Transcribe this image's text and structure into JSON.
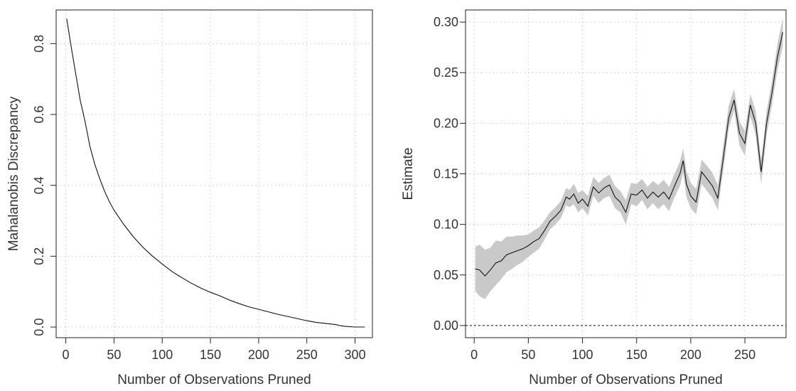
{
  "chart_data": [
    {
      "type": "line",
      "title": "",
      "xlabel": "Number of Observations Pruned",
      "ylabel": "Mahalanobis Discrepancy",
      "xlim": [
        -10,
        318
      ],
      "ylim": [
        -0.03,
        0.895
      ],
      "xticks": [
        0,
        50,
        100,
        150,
        200,
        250,
        300
      ],
      "yticks": [
        0.0,
        0.2,
        0.4,
        0.6,
        0.8
      ],
      "xtick_labels": [
        "0",
        "50",
        "100",
        "150",
        "200",
        "250",
        "300"
      ],
      "ytick_labels": [
        "0.0",
        "0.2",
        "0.4",
        "0.6",
        "0.8"
      ],
      "grid": true,
      "series": [
        {
          "x": [
            1,
            5,
            10,
            15,
            20,
            25,
            30,
            35,
            40,
            45,
            50,
            60,
            70,
            80,
            90,
            100,
            110,
            120,
            130,
            140,
            150,
            160,
            170,
            180,
            190,
            200,
            210,
            220,
            230,
            240,
            250,
            260,
            270,
            280,
            285,
            290,
            300,
            310
          ],
          "y": [
            0.87,
            0.8,
            0.72,
            0.64,
            0.58,
            0.51,
            0.46,
            0.42,
            0.385,
            0.355,
            0.33,
            0.29,
            0.255,
            0.225,
            0.2,
            0.178,
            0.157,
            0.14,
            0.124,
            0.11,
            0.098,
            0.088,
            0.076,
            0.066,
            0.057,
            0.05,
            0.043,
            0.036,
            0.03,
            0.024,
            0.018,
            0.013,
            0.01,
            0.007,
            0.004,
            0.002,
            0.0,
            0.0
          ]
        }
      ]
    },
    {
      "type": "line",
      "title": "",
      "xlabel": "Number of Observations Pruned",
      "ylabel": "Estimate",
      "xlim": [
        -8,
        288
      ],
      "ylim": [
        -0.012,
        0.312
      ],
      "xticks": [
        0,
        50,
        100,
        150,
        200,
        250
      ],
      "yticks": [
        0.0,
        0.05,
        0.1,
        0.15,
        0.2,
        0.25,
        0.3
      ],
      "xtick_labels": [
        "0",
        "50",
        "100",
        "150",
        "200",
        "250"
      ],
      "ytick_labels": [
        "0.00",
        "0.05",
        "0.10",
        "0.15",
        "0.20",
        "0.25",
        "0.30"
      ],
      "grid": true,
      "reference_line": 0.0,
      "series": [
        {
          "band": "confidence interval",
          "x": [
            1,
            5,
            10,
            15,
            20,
            25,
            30,
            35,
            40,
            45,
            50,
            55,
            60,
            65,
            70,
            75,
            80,
            85,
            88,
            92,
            96,
            100,
            105,
            110,
            115,
            120,
            125,
            130,
            135,
            140,
            145,
            150,
            155,
            160,
            165,
            170,
            175,
            180,
            185,
            190,
            193,
            196,
            200,
            205,
            210,
            215,
            220,
            225,
            230,
            235,
            240,
            245,
            250,
            255,
            260,
            265,
            270,
            275,
            280,
            285
          ],
          "y": [
            0.056,
            0.055,
            0.049,
            0.055,
            0.062,
            0.064,
            0.07,
            0.072,
            0.074,
            0.076,
            0.079,
            0.083,
            0.086,
            0.094,
            0.103,
            0.108,
            0.114,
            0.127,
            0.125,
            0.13,
            0.121,
            0.125,
            0.118,
            0.137,
            0.131,
            0.136,
            0.139,
            0.127,
            0.122,
            0.112,
            0.13,
            0.129,
            0.134,
            0.126,
            0.132,
            0.127,
            0.132,
            0.125,
            0.138,
            0.15,
            0.163,
            0.14,
            0.128,
            0.122,
            0.152,
            0.145,
            0.138,
            0.126,
            0.165,
            0.205,
            0.223,
            0.19,
            0.18,
            0.218,
            0.2,
            0.152,
            0.2,
            0.23,
            0.265,
            0.29
          ],
          "lower": [
            0.034,
            0.029,
            0.026,
            0.034,
            0.04,
            0.046,
            0.053,
            0.056,
            0.06,
            0.063,
            0.068,
            0.072,
            0.076,
            0.085,
            0.095,
            0.1,
            0.106,
            0.119,
            0.117,
            0.12,
            0.112,
            0.116,
            0.109,
            0.128,
            0.121,
            0.126,
            0.128,
            0.116,
            0.112,
            0.1,
            0.12,
            0.118,
            0.124,
            0.115,
            0.121,
            0.115,
            0.12,
            0.113,
            0.127,
            0.138,
            0.151,
            0.127,
            0.116,
            0.11,
            0.14,
            0.133,
            0.126,
            0.114,
            0.153,
            0.194,
            0.213,
            0.178,
            0.168,
            0.207,
            0.188,
            0.14,
            0.188,
            0.218,
            0.252,
            0.276
          ],
          "upper": [
            0.078,
            0.08,
            0.075,
            0.077,
            0.084,
            0.083,
            0.088,
            0.088,
            0.089,
            0.089,
            0.09,
            0.094,
            0.097,
            0.104,
            0.112,
            0.117,
            0.123,
            0.136,
            0.134,
            0.14,
            0.131,
            0.134,
            0.128,
            0.147,
            0.141,
            0.146,
            0.149,
            0.138,
            0.133,
            0.124,
            0.141,
            0.14,
            0.145,
            0.137,
            0.143,
            0.139,
            0.144,
            0.137,
            0.15,
            0.162,
            0.175,
            0.153,
            0.141,
            0.135,
            0.164,
            0.158,
            0.151,
            0.139,
            0.178,
            0.217,
            0.234,
            0.202,
            0.192,
            0.229,
            0.212,
            0.164,
            0.212,
            0.242,
            0.278,
            0.304
          ]
        }
      ]
    }
  ]
}
